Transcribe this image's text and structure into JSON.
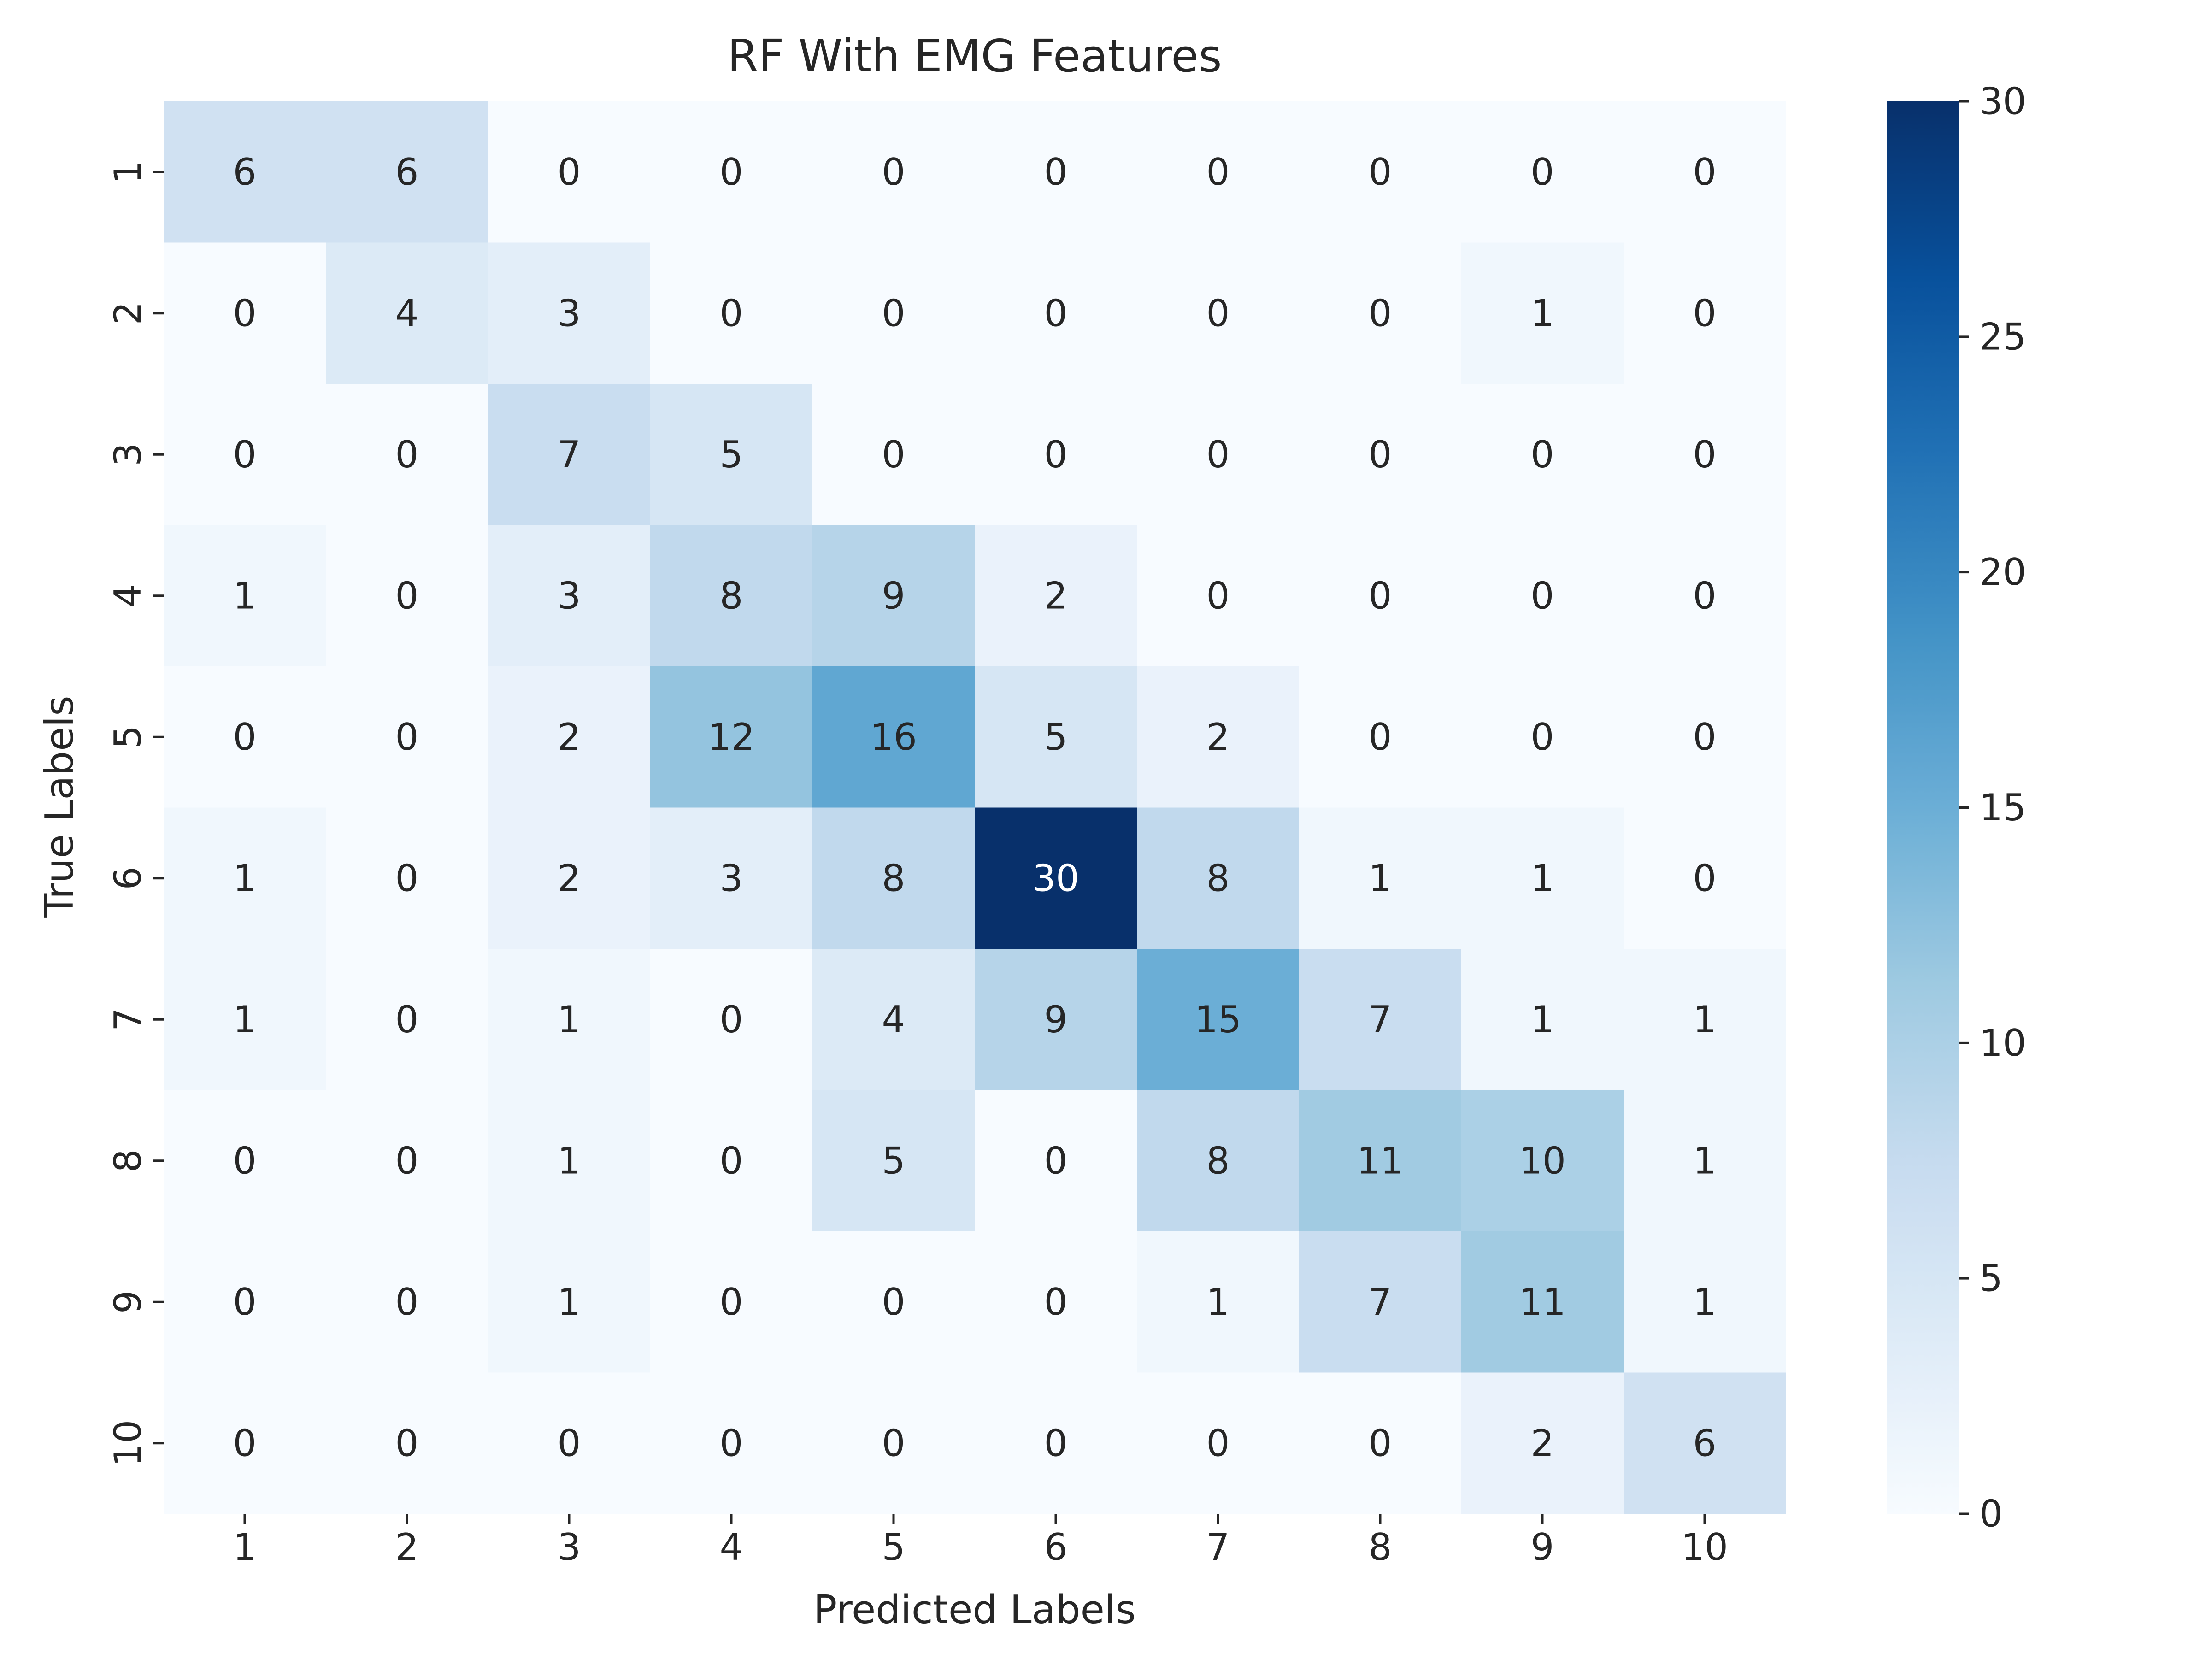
{
  "chart_data": {
    "type": "heatmap",
    "title": "RF With EMG Features",
    "xlabel": "Predicted Labels",
    "ylabel": "True Labels",
    "x_categories": [
      "1",
      "2",
      "3",
      "4",
      "5",
      "6",
      "7",
      "8",
      "9",
      "10"
    ],
    "y_categories": [
      "1",
      "2",
      "3",
      "4",
      "5",
      "6",
      "7",
      "8",
      "9",
      "10"
    ],
    "values": [
      [
        6,
        6,
        0,
        0,
        0,
        0,
        0,
        0,
        0,
        0
      ],
      [
        0,
        4,
        3,
        0,
        0,
        0,
        0,
        0,
        1,
        0
      ],
      [
        0,
        0,
        7,
        5,
        0,
        0,
        0,
        0,
        0,
        0
      ],
      [
        1,
        0,
        3,
        8,
        9,
        2,
        0,
        0,
        0,
        0
      ],
      [
        0,
        0,
        2,
        12,
        16,
        5,
        2,
        0,
        0,
        0
      ],
      [
        1,
        0,
        2,
        3,
        8,
        30,
        8,
        1,
        1,
        0
      ],
      [
        1,
        0,
        1,
        0,
        4,
        9,
        15,
        7,
        1,
        1
      ],
      [
        0,
        0,
        1,
        0,
        5,
        0,
        8,
        11,
        10,
        1
      ],
      [
        0,
        0,
        1,
        0,
        0,
        0,
        1,
        7,
        11,
        1
      ],
      [
        0,
        0,
        0,
        0,
        0,
        0,
        0,
        0,
        2,
        6
      ]
    ],
    "colorbar": {
      "min": 0,
      "max": 30,
      "ticks": [
        0,
        5,
        10,
        15,
        20,
        25,
        30
      ],
      "colormap": "Blues"
    },
    "colors": {
      "text_dark": "#262626",
      "text_light": "#ffffff",
      "axis": "#262626"
    }
  }
}
